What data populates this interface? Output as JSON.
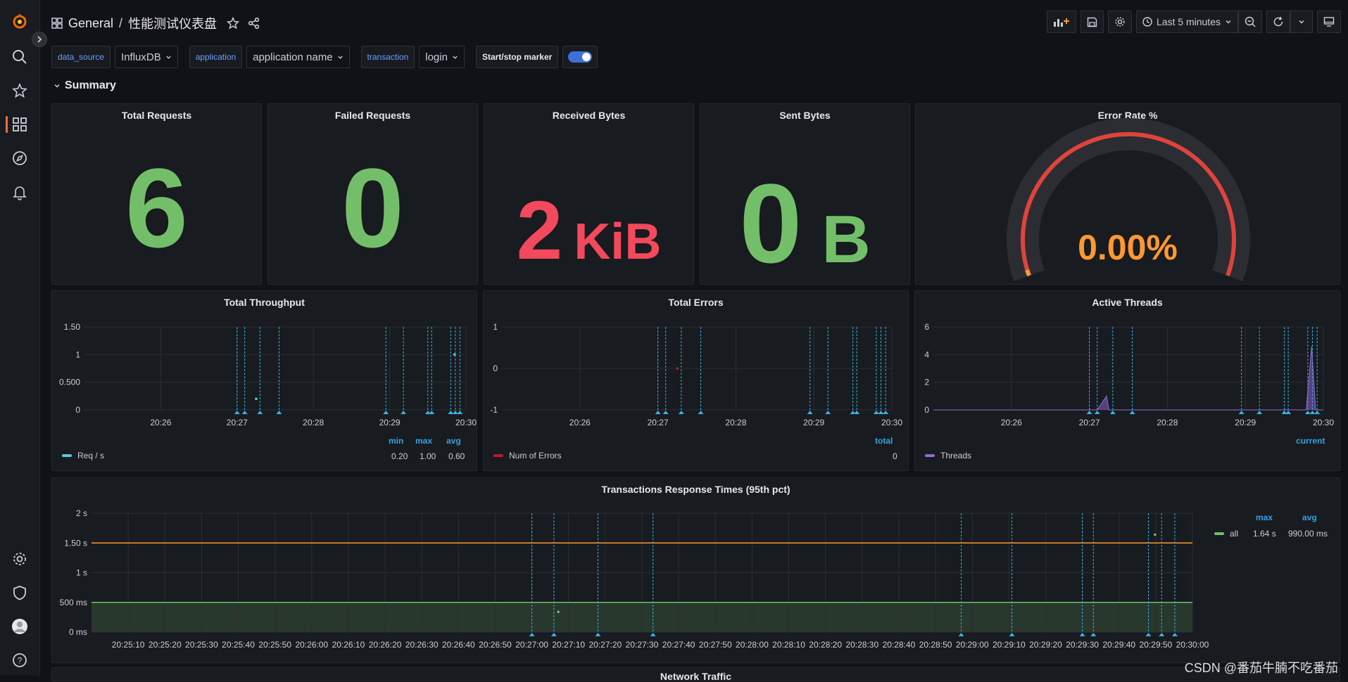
{
  "header": {
    "folder": "General",
    "separator": "/",
    "dashboard_title": "性能测试仪表盘"
  },
  "toolbar": {
    "time_range": "Last 5 minutes"
  },
  "variables": [
    {
      "label": "data_source",
      "value": "InfluxDB"
    },
    {
      "label": "application",
      "value": "application name"
    },
    {
      "label": "transaction",
      "value": "login"
    }
  ],
  "marker": {
    "label": "Start/stop marker",
    "enabled": true
  },
  "row": {
    "title": "Summary"
  },
  "stats": {
    "total_requests": {
      "title": "Total Requests",
      "value": "6",
      "color": "#73bf69"
    },
    "failed_requests": {
      "title": "Failed Requests",
      "value": "0",
      "color": "#73bf69"
    },
    "received_bytes": {
      "title": "Received Bytes",
      "value": "2",
      "unit": "KiB",
      "color": "#f2495c"
    },
    "sent_bytes": {
      "title": "Sent Bytes",
      "value": "0",
      "unit": "B",
      "color": "#73bf69"
    },
    "error_rate": {
      "title": "Error Rate %",
      "value": "0.00%",
      "color": "#ff9830",
      "gauge_color": "#e0433b"
    }
  },
  "throughput": {
    "title": "Total Throughput",
    "legend": {
      "name": "Req / s",
      "color": "#5ec4e6",
      "headers": [
        "min",
        "max",
        "avg"
      ],
      "values": [
        "0.20",
        "1.00",
        "0.60"
      ]
    }
  },
  "errors": {
    "title": "Total Errors",
    "legend": {
      "name": "Num of Errors",
      "color": "#c4162a",
      "headers": [
        "total"
      ],
      "values": [
        "0"
      ]
    }
  },
  "threads": {
    "title": "Active Threads",
    "legend": {
      "name": "Threads",
      "color": "#8f6cd6",
      "headers": [
        "current"
      ],
      "values": [
        ""
      ]
    }
  },
  "response_times": {
    "title": "Transactions Response Times (95th pct)",
    "legend": {
      "name": "all",
      "color": "#73bf69",
      "headers": [
        "max",
        "avg"
      ],
      "values": [
        "1.64 s",
        "990.00 ms"
      ]
    }
  },
  "next_panel": {
    "title": "Network Traffic"
  },
  "watermark": "CSDN @番茄牛腩不吃番茄",
  "chart_data": [
    {
      "type": "line",
      "title": "Total Throughput",
      "x": [
        "20:26",
        "20:27",
        "20:28",
        "20:29",
        "20:30"
      ],
      "yticks": [
        "0",
        "0.500",
        "1",
        "1.50"
      ],
      "ylim": [
        0,
        1.5
      ],
      "series": [
        {
          "name": "Req / s",
          "points": [
            [
              27.25,
              0.2
            ],
            [
              29.85,
              1.0
            ]
          ]
        }
      ]
    },
    {
      "type": "line",
      "title": "Total Errors",
      "x": [
        "20:26",
        "20:27",
        "20:28",
        "20:29",
        "20:30"
      ],
      "yticks": [
        "-1",
        "0",
        "1"
      ],
      "ylim": [
        -1,
        1
      ],
      "series": [
        {
          "name": "Num of Errors",
          "points": [
            [
              27.25,
              0
            ]
          ]
        }
      ]
    },
    {
      "type": "area",
      "title": "Active Threads",
      "x": [
        "20:26",
        "20:27",
        "20:28",
        "20:29",
        "20:30"
      ],
      "yticks": [
        "0",
        "2",
        "4",
        "6"
      ],
      "ylim": [
        0,
        6
      ],
      "series": [
        {
          "name": "Threads",
          "points": [
            [
              27.1,
              0
            ],
            [
              27.22,
              1
            ],
            [
              27.25,
              0
            ],
            [
              29.78,
              0
            ],
            [
              29.85,
              4.6
            ],
            [
              29.9,
              0
            ]
          ]
        }
      ]
    },
    {
      "type": "line",
      "title": "Transactions Response Times (95th pct)",
      "x": [
        "20:25:10",
        "20:25:20",
        "20:25:30",
        "20:25:40",
        "20:25:50",
        "20:26:00",
        "20:26:10",
        "20:26:20",
        "20:26:30",
        "20:26:40",
        "20:26:50",
        "20:27:00",
        "20:27:10",
        "20:27:20",
        "20:27:30",
        "20:27:40",
        "20:27:50",
        "20:28:00",
        "20:28:10",
        "20:28:20",
        "20:28:30",
        "20:28:40",
        "20:28:50",
        "20:29:00",
        "20:29:10",
        "20:29:20",
        "20:29:30",
        "20:29:40",
        "20:29:50",
        "20:30:00"
      ],
      "yticks": [
        "0 ms",
        "500 ms",
        "1 s",
        "1.50 s",
        "2 s"
      ],
      "ylim": [
        0,
        2
      ],
      "thresholds": [
        {
          "value": 0.5,
          "color": "#73bf69"
        },
        {
          "value": 1.5,
          "color": "#ff9830"
        }
      ],
      "series": [
        {
          "name": "all",
          "points": [
            [
              27.12,
              0.34
            ],
            [
              29.83,
              1.64
            ]
          ]
        }
      ]
    }
  ]
}
